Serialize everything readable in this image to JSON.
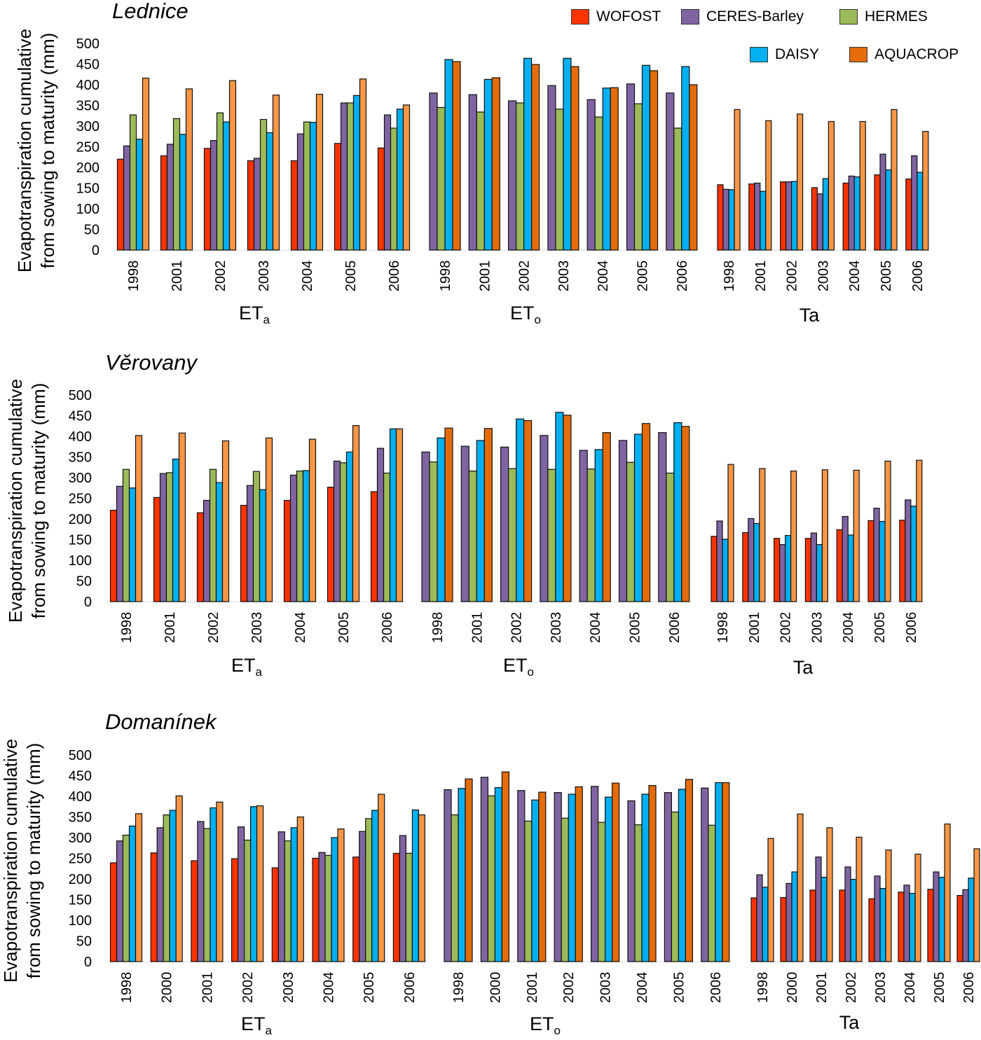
{
  "legend": [
    {
      "name": "WOFOST",
      "color": "#ff3300"
    },
    {
      "name": "CERES-Barley",
      "color": "#8064a2"
    },
    {
      "name": "HERMES",
      "color": "#9bbb59"
    },
    {
      "name": "DAISY",
      "color": "#00b0f0"
    },
    {
      "name": "AQUACROP",
      "color": "#e46c0a"
    }
  ],
  "ylabel": {
    "line1": "Evapotranspiration cumulative",
    "line2": "from sowing to maturity (mm)"
  },
  "chart_data": [
    {
      "type": "bar",
      "title": "Lednice",
      "ylim": [
        0,
        500
      ],
      "yticks": [
        0,
        50,
        100,
        150,
        200,
        250,
        300,
        350,
        400,
        450,
        500
      ],
      "groups": [
        {
          "label": "ET",
          "sub": "a",
          "categories": [
            "1998",
            "2001",
            "2002",
            "2003",
            "2004",
            "2005",
            "2006"
          ],
          "series": [
            {
              "name": "WOFOST",
              "values": [
                220,
                228,
                246,
                216,
                216,
                258,
                247
              ]
            },
            {
              "name": "CERES-Barley",
              "values": [
                252,
                256,
                265,
                222,
                281,
                356,
                327
              ]
            },
            {
              "name": "HERMES",
              "values": [
                327,
                318,
                332,
                316,
                310,
                356,
                295
              ]
            },
            {
              "name": "DAISY",
              "values": [
                268,
                280,
                310,
                284,
                309,
                374,
                341
              ]
            },
            {
              "name": "AQUACROP",
              "values": [
                416,
                390,
                410,
                375,
                377,
                414,
                351
              ]
            }
          ]
        },
        {
          "label": "ET",
          "sub": "o",
          "categories": [
            "1998",
            "2001",
            "2002",
            "2003",
            "2004",
            "2005",
            "2006"
          ],
          "series": [
            {
              "name": "CERES-Barley",
              "values": [
                380,
                376,
                361,
                398,
                364,
                402,
                380
              ]
            },
            {
              "name": "HERMES",
              "values": [
                345,
                334,
                356,
                341,
                322,
                354,
                295
              ]
            },
            {
              "name": "DAISY",
              "values": [
                461,
                413,
                464,
                464,
                392,
                447,
                444
              ]
            },
            {
              "name": "AQUACROP",
              "values": [
                456,
                417,
                449,
                444,
                393,
                434,
                400
              ]
            }
          ]
        },
        {
          "label": "Ta",
          "sub": "",
          "categories": [
            "1998",
            "2001",
            "2002",
            "2003",
            "2004",
            "2005",
            "2006"
          ],
          "series": [
            {
              "name": "WOFOST",
              "values": [
                158,
                160,
                165,
                151,
                162,
                182,
                172
              ]
            },
            {
              "name": "CERES-Barley",
              "values": [
                147,
                162,
                165,
                136,
                179,
                232,
                228
              ]
            },
            {
              "name": "DAISY",
              "values": [
                146,
                142,
                166,
                173,
                177,
                194,
                188
              ]
            },
            {
              "name": "AQUACROP",
              "values": [
                340,
                313,
                329,
                311,
                311,
                340,
                287
              ]
            }
          ]
        }
      ]
    },
    {
      "type": "bar",
      "title": "Věrovany",
      "ylim": [
        0,
        500
      ],
      "yticks": [
        0,
        50,
        100,
        150,
        200,
        250,
        300,
        350,
        400,
        450,
        500
      ],
      "groups": [
        {
          "label": "ET",
          "sub": "a",
          "categories": [
            "1998",
            "2001",
            "2002",
            "2003",
            "2004",
            "2005",
            "2006"
          ],
          "series": [
            {
              "name": "WOFOST",
              "values": [
                221,
                252,
                215,
                233,
                245,
                277,
                266
              ]
            },
            {
              "name": "CERES-Barley",
              "values": [
                279,
                310,
                245,
                281,
                306,
                340,
                371
              ]
            },
            {
              "name": "HERMES",
              "values": [
                320,
                312,
                320,
                315,
                316,
                336,
                311
              ]
            },
            {
              "name": "DAISY",
              "values": [
                275,
                345,
                288,
                271,
                317,
                362,
                418
              ]
            },
            {
              "name": "AQUACROP",
              "values": [
                402,
                408,
                389,
                396,
                393,
                426,
                418
              ]
            }
          ]
        },
        {
          "label": "ET",
          "sub": "o",
          "categories": [
            "1998",
            "2001",
            "2002",
            "2003",
            "2004",
            "2005",
            "2006"
          ],
          "series": [
            {
              "name": "CERES-Barley",
              "values": [
                362,
                376,
                374,
                402,
                366,
                390,
                409
              ]
            },
            {
              "name": "HERMES",
              "values": [
                338,
                316,
                322,
                320,
                321,
                337,
                311
              ]
            },
            {
              "name": "DAISY",
              "values": [
                396,
                390,
                442,
                458,
                368,
                405,
                433
              ]
            },
            {
              "name": "AQUACROP",
              "values": [
                420,
                419,
                438,
                451,
                409,
                431,
                424
              ]
            }
          ]
        },
        {
          "label": "Ta",
          "sub": "",
          "categories": [
            "1998",
            "2001",
            "2002",
            "2003",
            "2004",
            "2005",
            "2006"
          ],
          "series": [
            {
              "name": "WOFOST",
              "values": [
                158,
                167,
                153,
                153,
                174,
                196,
                197
              ]
            },
            {
              "name": "CERES-Barley",
              "values": [
                195,
                201,
                138,
                166,
                206,
                226,
                246
              ]
            },
            {
              "name": "DAISY",
              "values": [
                151,
                189,
                160,
                138,
                161,
                194,
                231
              ]
            },
            {
              "name": "AQUACROP",
              "values": [
                332,
                322,
                316,
                319,
                318,
                340,
                342
              ]
            }
          ]
        }
      ]
    },
    {
      "type": "bar",
      "title": "Domanínek",
      "ylim": [
        0,
        500
      ],
      "yticks": [
        0,
        50,
        100,
        150,
        200,
        250,
        300,
        350,
        400,
        450,
        500
      ],
      "groups": [
        {
          "label": "ET",
          "sub": "a",
          "categories": [
            "1998",
            "2000",
            "2001",
            "2002",
            "2003",
            "2004",
            "2005",
            "2006"
          ],
          "series": [
            {
              "name": "WOFOST",
              "values": [
                239,
                263,
                244,
                249,
                227,
                250,
                253,
                262
              ]
            },
            {
              "name": "CERES-Barley",
              "values": [
                292,
                324,
                339,
                326,
                314,
                264,
                315,
                305
              ]
            },
            {
              "name": "HERMES",
              "values": [
                306,
                355,
                322,
                294,
                292,
                257,
                346,
                262
              ]
            },
            {
              "name": "DAISY",
              "values": [
                328,
                366,
                372,
                375,
                324,
                300,
                366,
                367
              ]
            },
            {
              "name": "AQUACROP",
              "values": [
                358,
                401,
                386,
                377,
                350,
                321,
                405,
                355
              ]
            }
          ]
        },
        {
          "label": "ET",
          "sub": "o",
          "categories": [
            "1998",
            "2000",
            "2001",
            "2002",
            "2003",
            "2004",
            "2005",
            "2006"
          ],
          "series": [
            {
              "name": "CERES-Barley",
              "values": [
                416,
                446,
                414,
                409,
                424,
                389,
                409,
                420
              ]
            },
            {
              "name": "HERMES",
              "values": [
                355,
                401,
                340,
                347,
                337,
                331,
                362,
                330
              ]
            },
            {
              "name": "DAISY",
              "values": [
                419,
                421,
                391,
                405,
                398,
                405,
                417,
                433
              ]
            },
            {
              "name": "AQUACROP",
              "values": [
                442,
                459,
                410,
                423,
                432,
                426,
                441,
                433
              ]
            }
          ]
        },
        {
          "label": "Ta",
          "sub": "",
          "categories": [
            "1998",
            "2000",
            "2001",
            "2002",
            "2003",
            "2004",
            "2005",
            "2006"
          ],
          "series": [
            {
              "name": "WOFOST",
              "values": [
                154,
                155,
                173,
                173,
                152,
                168,
                175,
                160
              ]
            },
            {
              "name": "CERES-Barley",
              "values": [
                210,
                189,
                253,
                229,
                207,
                185,
                217,
                174
              ]
            },
            {
              "name": "DAISY",
              "values": [
                180,
                217,
                204,
                199,
                177,
                165,
                204,
                202
              ]
            },
            {
              "name": "AQUACROP",
              "values": [
                298,
                357,
                324,
                301,
                270,
                260,
                333,
                273
              ]
            }
          ]
        }
      ]
    }
  ]
}
